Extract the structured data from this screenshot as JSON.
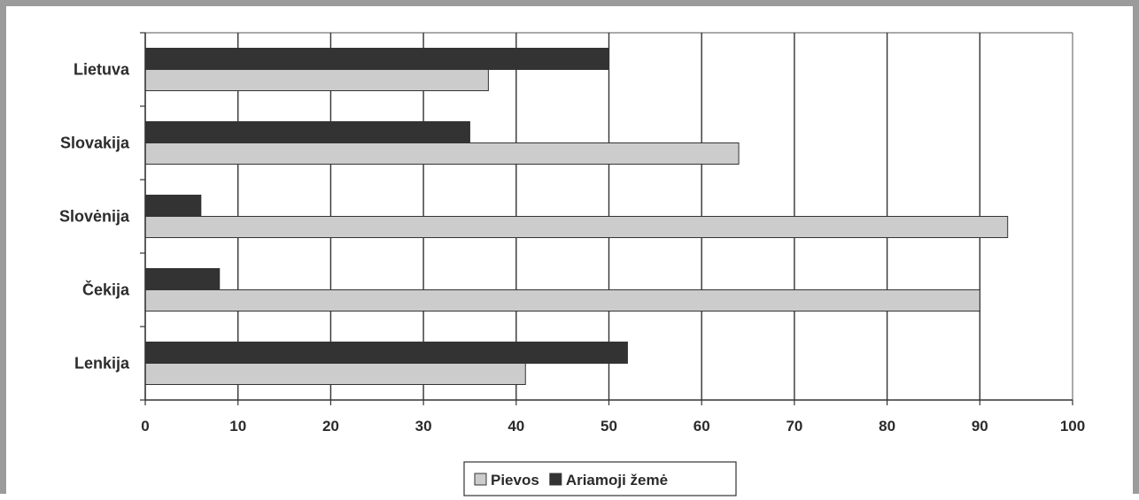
{
  "chart_data": {
    "type": "bar",
    "orientation": "horizontal",
    "categories": [
      "Lietuva",
      "Slovakija",
      "Slovėnija",
      "Čekija",
      "Lenkija"
    ],
    "series": [
      {
        "name": "Ariamoji žemė",
        "values": [
          50,
          35,
          6,
          8,
          52
        ],
        "color": "#333333"
      },
      {
        "name": "Pievos",
        "values": [
          37,
          64,
          93,
          90,
          41
        ],
        "color": "#cccccc"
      }
    ],
    "xlim": [
      0,
      100
    ],
    "xticks": [
      "0",
      "10",
      "20",
      "30",
      "40",
      "50",
      "60",
      "70",
      "80",
      "90",
      "100"
    ],
    "grid": true,
    "legend": {
      "position": "bottom",
      "items": [
        {
          "label": "Pievos",
          "color": "#cccccc"
        },
        {
          "label": "Ariamoji žemė",
          "color": "#333333"
        }
      ]
    }
  }
}
